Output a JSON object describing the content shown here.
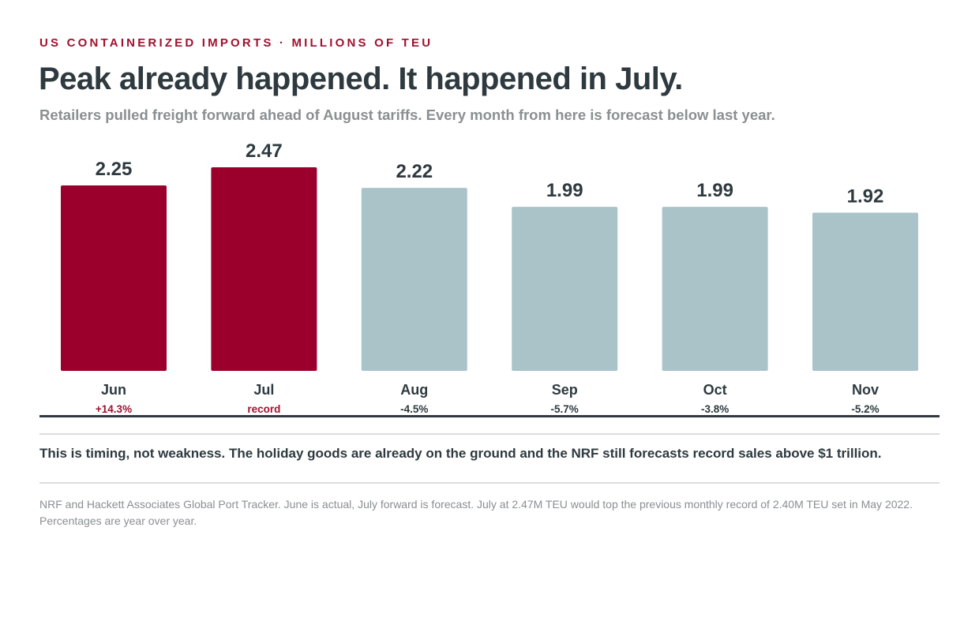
{
  "header": {
    "kicker": "US CONTAINERIZED IMPORTS · MILLIONS OF TEU",
    "title": "Peak already happened. It happened in July.",
    "subtitle": "Retailers pulled freight forward ahead of August tariffs. Every month from here is forecast below last year."
  },
  "colors": {
    "actual_bar": "#9b002c",
    "forecast_bar": "#aac3c9",
    "text_dark": "#2e3a3f",
    "accent_red": "#a0112f",
    "muted": "#8a8f92"
  },
  "chart_data": {
    "type": "bar",
    "unit": "millions of TEU",
    "categories": [
      "Jun",
      "Jul",
      "Aug",
      "Sep",
      "Oct",
      "Nov"
    ],
    "values": [
      2.25,
      2.47,
      2.22,
      1.99,
      1.99,
      1.92
    ],
    "value_labels": [
      "2.25",
      "2.47",
      "2.22",
      "1.99",
      "1.99",
      "1.92"
    ],
    "change_labels": [
      "+14.3%",
      "record",
      "-4.5%",
      "-5.7%",
      "-3.8%",
      "-5.2%"
    ],
    "highlighted": [
      true,
      true,
      false,
      false,
      false,
      false
    ],
    "ylim": [
      0,
      2.47
    ],
    "grid": false,
    "legend": "none"
  },
  "takeaway": "This is timing, not weakness. The holiday goods are already on the ground and the NRF still forecasts record sales above $1 trillion.",
  "source": {
    "line1": "NRF and Hackett Associates Global Port Tracker. June is actual, July forward is forecast. July at 2.47M TEU would top the previous monthly record of 2.40M TEU set in May 2022.",
    "line2": "Percentages are year over year."
  }
}
